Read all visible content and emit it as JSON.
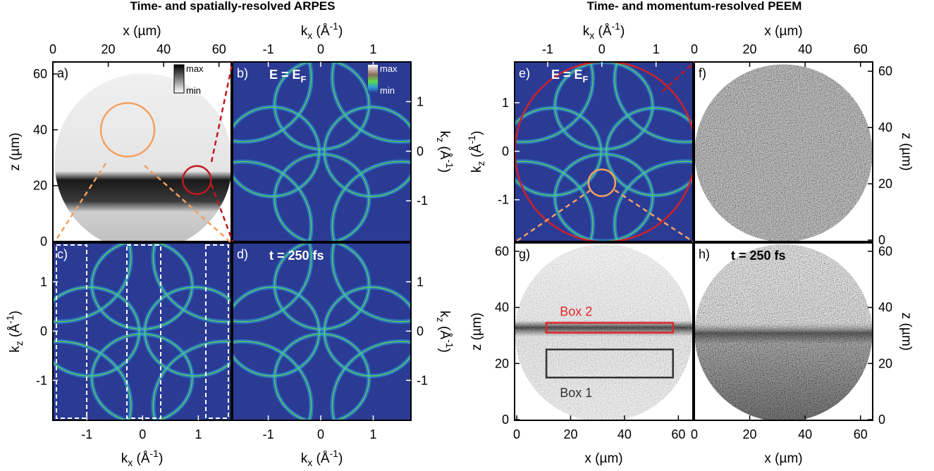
{
  "figure_titles": [
    "Time- and spatially-resolved ARPES",
    "Time- and momentum-resolved PEEM"
  ],
  "chart_data": [
    {
      "type": "image",
      "panel_label": "a)",
      "xlim": [
        0,
        64.4
      ],
      "ylim": [
        0,
        64.3
      ],
      "xticks": [
        0,
        20,
        40,
        60
      ],
      "yticks": [
        0,
        20,
        40,
        60
      ],
      "xlabel": [
        "x (µm)"
      ],
      "ylabel": [
        "z (µm)"
      ],
      "colorbar_labels": [
        "max",
        "min"
      ]
    },
    {
      "type": "image",
      "panel_label": "b)",
      "xlim": [
        -1.68,
        1.72
      ],
      "ylim": [
        -1.82,
        1.8
      ],
      "xticks": [
        -1,
        0,
        1
      ],
      "yticks": [
        -1,
        0,
        1
      ],
      "xlabel": [
        "k",
        "x",
        " (Å",
        "-1",
        ")"
      ],
      "ylabel": [
        "k",
        "z",
        " (Å",
        "-1",
        ")"
      ],
      "annotation": [
        "E = E",
        "F"
      ],
      "colorbar_labels": [
        "max",
        "min"
      ]
    },
    {
      "type": "image",
      "panel_label": "c)",
      "xlim": [
        -1.61,
        1.59
      ],
      "ylim": [
        -1.81,
        1.79
      ],
      "xticks": [
        -1,
        0,
        1
      ],
      "yticks": [
        -1,
        0,
        1
      ],
      "xlabel": [
        "k",
        "x",
        " (Å",
        "-1",
        ")"
      ],
      "ylabel": [
        "k",
        "z",
        " (Å",
        "-1",
        ")"
      ]
    },
    {
      "type": "image",
      "panel_label": "d)",
      "xlim": [
        -1.68,
        1.72
      ],
      "ylim": [
        -1.81,
        1.79
      ],
      "xticks": [
        -1,
        0,
        1
      ],
      "yticks": [
        -1,
        0,
        1
      ],
      "xlabel": [
        "k",
        "x",
        " (Å",
        "-1",
        ")"
      ],
      "ylabel": [
        "k",
        "z",
        " (Å",
        "-1",
        ")"
      ],
      "annotation": [
        "t = 250 fs"
      ]
    },
    {
      "type": "image",
      "panel_label": "e)",
      "xlim": [
        -1.61,
        1.68
      ],
      "ylim": [
        -1.86,
        1.84
      ],
      "xticks": [
        -1,
        0,
        1
      ],
      "yticks": [
        -1,
        0,
        1
      ],
      "xlabel": [
        "k",
        "x",
        " (Å",
        "-1",
        ")"
      ],
      "ylabel": [
        "k",
        "z",
        " (Å",
        "-1",
        ")"
      ],
      "annotation": [
        "E = E",
        "F"
      ]
    },
    {
      "type": "image",
      "panel_label": "f)",
      "xlim": [
        0,
        64.4
      ],
      "ylim": [
        -0.5,
        63.3
      ],
      "xticks": [
        0,
        20,
        40,
        60
      ],
      "yticks": [
        0,
        20,
        40,
        60
      ],
      "xlabel": [
        "x (µm)"
      ],
      "ylabel": [
        "z (µm)"
      ]
    },
    {
      "type": "image",
      "panel_label": "g)",
      "xlim": [
        -0.8,
        65.4
      ],
      "ylim": [
        -0.25,
        63
      ],
      "xticks": [
        0,
        20,
        40,
        60
      ],
      "yticks": [
        0,
        20,
        40,
        60
      ],
      "xlabel": [
        "x (µm)"
      ],
      "ylabel": [
        "z (µm)"
      ],
      "boxes": [
        {
          "label": "Box 2",
          "color": "#e3262b"
        },
        {
          "label": "Box 1",
          "color": "#333333"
        }
      ]
    },
    {
      "type": "image",
      "panel_label": "h)",
      "xlim": [
        0,
        64.4
      ],
      "ylim": [
        -0.25,
        63
      ],
      "xticks": [
        0,
        20,
        40,
        60
      ],
      "yticks": [
        0,
        20,
        40,
        60
      ],
      "xlabel": [
        "x (µm)"
      ],
      "ylabel": [
        "z (µm)"
      ],
      "annotation": [
        "t = 250 fs"
      ]
    }
  ]
}
